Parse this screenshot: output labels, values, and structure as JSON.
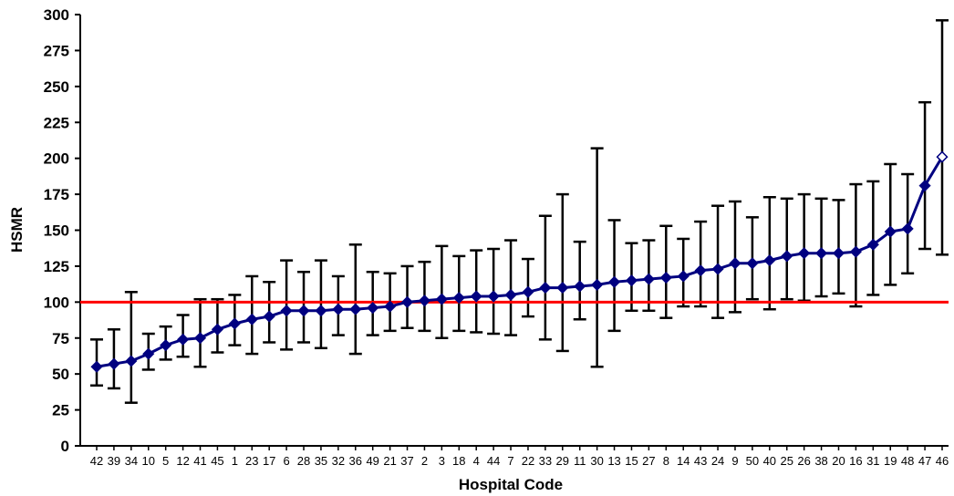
{
  "chart_data": {
    "type": "line",
    "title": "",
    "xlabel": "Hospital Code",
    "ylabel": "HSMR",
    "ylim": [
      0,
      300
    ],
    "yticks": [
      0,
      25,
      50,
      75,
      100,
      125,
      150,
      175,
      200,
      225,
      250,
      275,
      300
    ],
    "grid": false,
    "legend": "none",
    "reference_line": {
      "y": 100,
      "color": "#ff0000"
    },
    "series_color": "#000080",
    "errorbar_color": "#000000",
    "categories": [
      "42",
      "39",
      "34",
      "10",
      "5",
      "12",
      "41",
      "45",
      "1",
      "23",
      "17",
      "6",
      "28",
      "35",
      "32",
      "36",
      "49",
      "21",
      "37",
      "2",
      "3",
      "18",
      "4",
      "44",
      "7",
      "22",
      "33",
      "29",
      "11",
      "30",
      "13",
      "15",
      "27",
      "8",
      "14",
      "43",
      "24",
      "9",
      "50",
      "40",
      "25",
      "26",
      "38",
      "20",
      "16",
      "31",
      "19",
      "48",
      "47",
      "46"
    ],
    "series": [
      {
        "values": [
          55,
          57,
          59,
          64,
          70,
          74,
          75,
          81,
          85,
          88,
          90,
          94,
          94,
          94,
          95,
          95,
          96,
          97,
          100,
          101,
          102,
          103,
          104,
          104,
          105,
          107,
          110,
          110,
          111,
          112,
          114,
          115,
          116,
          117,
          118,
          122,
          123,
          127,
          127,
          129,
          132,
          134,
          134,
          134,
          135,
          140,
          149,
          151,
          181,
          201
        ],
        "lower": [
          42,
          40,
          30,
          53,
          60,
          62,
          55,
          65,
          70,
          64,
          72,
          67,
          72,
          68,
          77,
          64,
          77,
          80,
          82,
          80,
          75,
          80,
          79,
          78,
          77,
          90,
          74,
          66,
          88,
          55,
          80,
          94,
          94,
          89,
          97,
          97,
          89,
          93,
          102,
          95,
          102,
          101,
          104,
          106,
          97,
          105,
          112,
          120,
          137,
          133
        ],
        "upper": [
          74,
          81,
          107,
          78,
          83,
          91,
          102,
          102,
          105,
          118,
          114,
          129,
          121,
          129,
          118,
          140,
          121,
          120,
          125,
          128,
          139,
          132,
          136,
          137,
          143,
          130,
          160,
          175,
          142,
          207,
          157,
          141,
          143,
          153,
          144,
          156,
          167,
          170,
          159,
          173,
          172,
          175,
          172,
          171,
          182,
          184,
          196,
          189,
          239,
          296
        ]
      }
    ]
  }
}
